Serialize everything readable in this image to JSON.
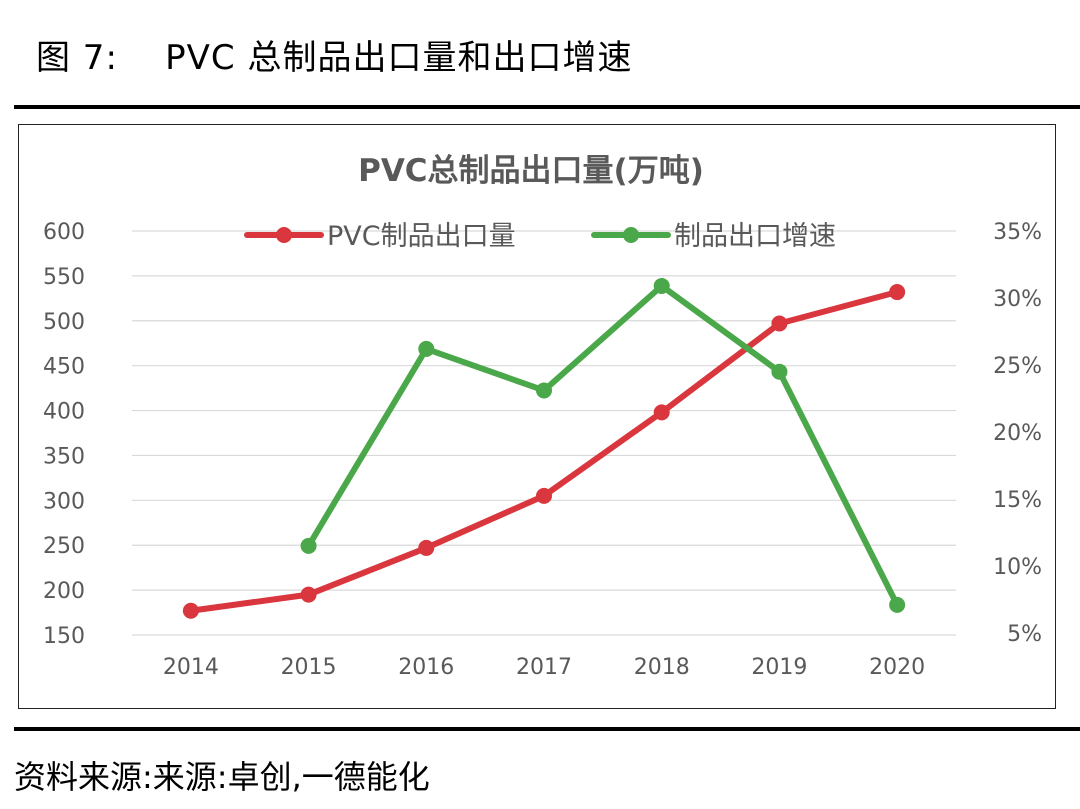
{
  "figure": {
    "label": "图 7:",
    "caption": "PVC 总制品出口量和出口增速"
  },
  "source": "资料来源:来源:卓创,一德能化",
  "chart_data": {
    "type": "line",
    "title": "PVC总制品出口量(万吨)",
    "categories": [
      "2014",
      "2015",
      "2016",
      "2017",
      "2018",
      "2019",
      "2020"
    ],
    "y_left": {
      "ticks": [
        "600",
        "550",
        "500",
        "450",
        "400",
        "350",
        "300",
        "250",
        "200",
        "150"
      ],
      "range": [
        150,
        600
      ]
    },
    "y_right": {
      "ticks": [
        "35%",
        "30%",
        "25%",
        "20%",
        "15%",
        "10%",
        "5%"
      ],
      "range": [
        5,
        35
      ]
    },
    "grid": true,
    "legend_position": "top",
    "series": [
      {
        "name": "PVC制品出口量",
        "axis": "left",
        "color": "#d9363e",
        "values": [
          177,
          195,
          247,
          305,
          398,
          497,
          532
        ]
      },
      {
        "name": "制品出口增速",
        "axis": "right",
        "color": "#4aa84a",
        "values": [
          null,
          11.5,
          26.2,
          23.1,
          30.9,
          24.5,
          7.1
        ]
      }
    ]
  }
}
